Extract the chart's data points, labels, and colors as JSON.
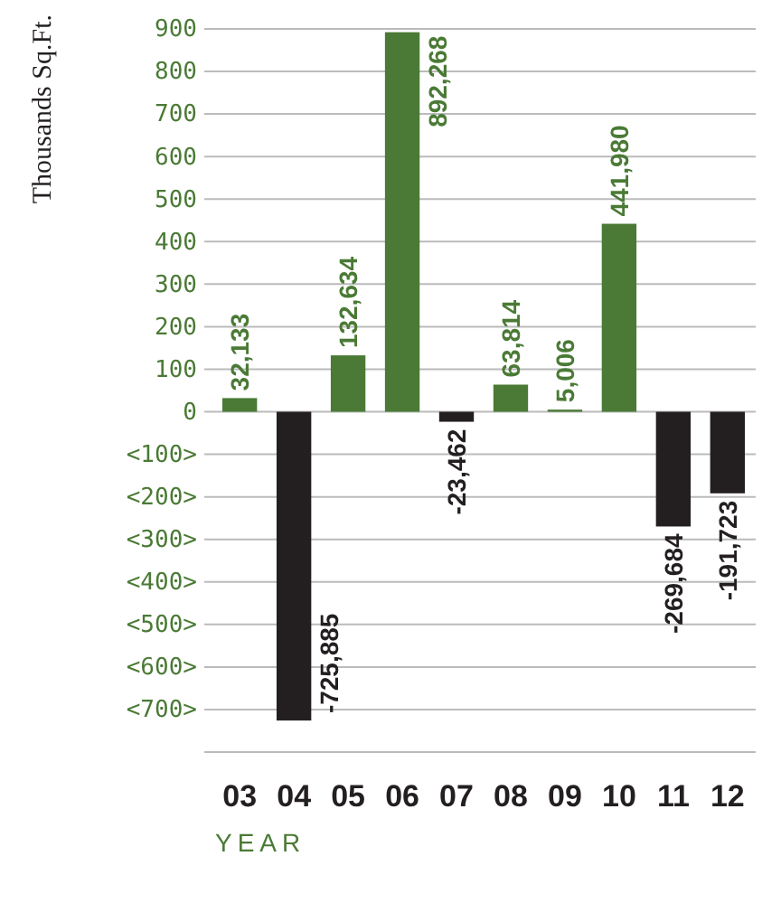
{
  "chart_data": {
    "type": "bar",
    "ylabel": "Thousands Sq.Ft.",
    "xlabel": "YEAR",
    "categories": [
      "03",
      "04",
      "05",
      "06",
      "07",
      "08",
      "09",
      "10",
      "11",
      "12"
    ],
    "values": [
      32.133,
      -725.885,
      132.634,
      892.268,
      -23.462,
      63.814,
      5.006,
      441.98,
      -269.684,
      -191.723
    ],
    "annotations": [
      {
        "text": "32,133",
        "x": "03",
        "y": 32.133
      },
      {
        "text": "-725,885",
        "x": "04",
        "y": -725.885
      },
      {
        "text": "132,634",
        "x": "05",
        "y": 132.634
      },
      {
        "text": "892,268",
        "x": "06",
        "y": 892.268
      },
      {
        "text": "-23,462",
        "x": "07",
        "y": -23.462
      },
      {
        "text": "63,814",
        "x": "08",
        "y": 63.814
      },
      {
        "text": "5,006",
        "x": "09",
        "y": 5.006
      },
      {
        "text": "441,980",
        "x": "10",
        "y": 441.98
      },
      {
        "text": "-269,684",
        "x": "11",
        "y": -269.684
      },
      {
        "text": "-191,723",
        "x": "12",
        "y": -191.723
      }
    ],
    "colors": [
      "#4a7a35",
      "#231f20",
      "#4a7a35",
      "#4a7a35",
      "#231f20",
      "#4a7a35",
      "#4a7a35",
      "#4a7a35",
      "#231f20",
      "#231f20"
    ],
    "ylim": [
      -800,
      900
    ],
    "yticks": [
      {
        "value": -800,
        "label": null
      },
      {
        "value": -700,
        "label": "<700>"
      },
      {
        "value": -600,
        "label": "<600>"
      },
      {
        "value": -500,
        "label": "<500>"
      },
      {
        "value": -400,
        "label": "<400>"
      },
      {
        "value": -300,
        "label": "<300>"
      },
      {
        "value": -200,
        "label": "<200>"
      },
      {
        "value": -100,
        "label": "<100>"
      },
      0,
      100,
      200,
      300,
      400,
      500,
      600,
      700,
      800,
      900
    ],
    "grid": "y"
  }
}
